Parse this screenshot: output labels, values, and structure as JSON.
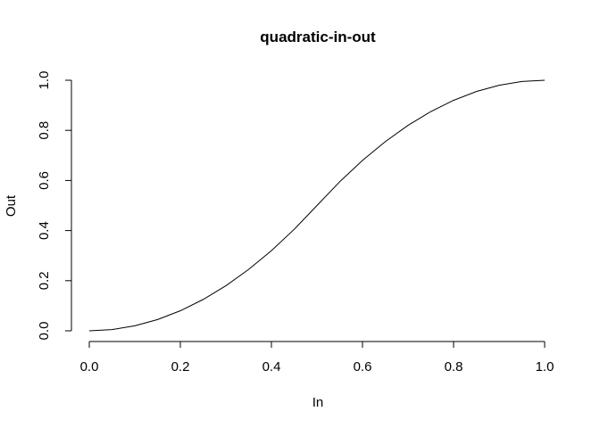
{
  "chart_data": {
    "type": "line",
    "title": "quadratic-in-out",
    "xlabel": "In",
    "ylabel": "Out",
    "xlim": [
      0,
      1
    ],
    "ylim": [
      0,
      1
    ],
    "x_ticks": [
      0.0,
      0.2,
      0.4,
      0.6,
      0.8,
      1.0
    ],
    "y_ticks": [
      0.0,
      0.2,
      0.4,
      0.6,
      0.8,
      1.0
    ],
    "x_tick_labels": [
      "0.0",
      "0.2",
      "0.4",
      "0.6",
      "0.8",
      "1.0"
    ],
    "y_tick_labels": [
      "0.0",
      "0.2",
      "0.4",
      "0.6",
      "0.8",
      "1.0"
    ],
    "grid": false,
    "legend": "none",
    "line_color": "#000000",
    "series": [
      {
        "x": [
          0.0,
          0.05,
          0.1,
          0.15,
          0.2,
          0.25,
          0.3,
          0.35,
          0.4,
          0.45,
          0.5,
          0.55,
          0.6,
          0.65,
          0.7,
          0.75,
          0.8,
          0.85,
          0.9,
          0.95,
          1.0
        ],
        "y": [
          0.0,
          0.005,
          0.02,
          0.045,
          0.08,
          0.125,
          0.18,
          0.245,
          0.32,
          0.405,
          0.5,
          0.595,
          0.68,
          0.755,
          0.82,
          0.875,
          0.92,
          0.955,
          0.98,
          0.995,
          1.0
        ]
      }
    ]
  }
}
